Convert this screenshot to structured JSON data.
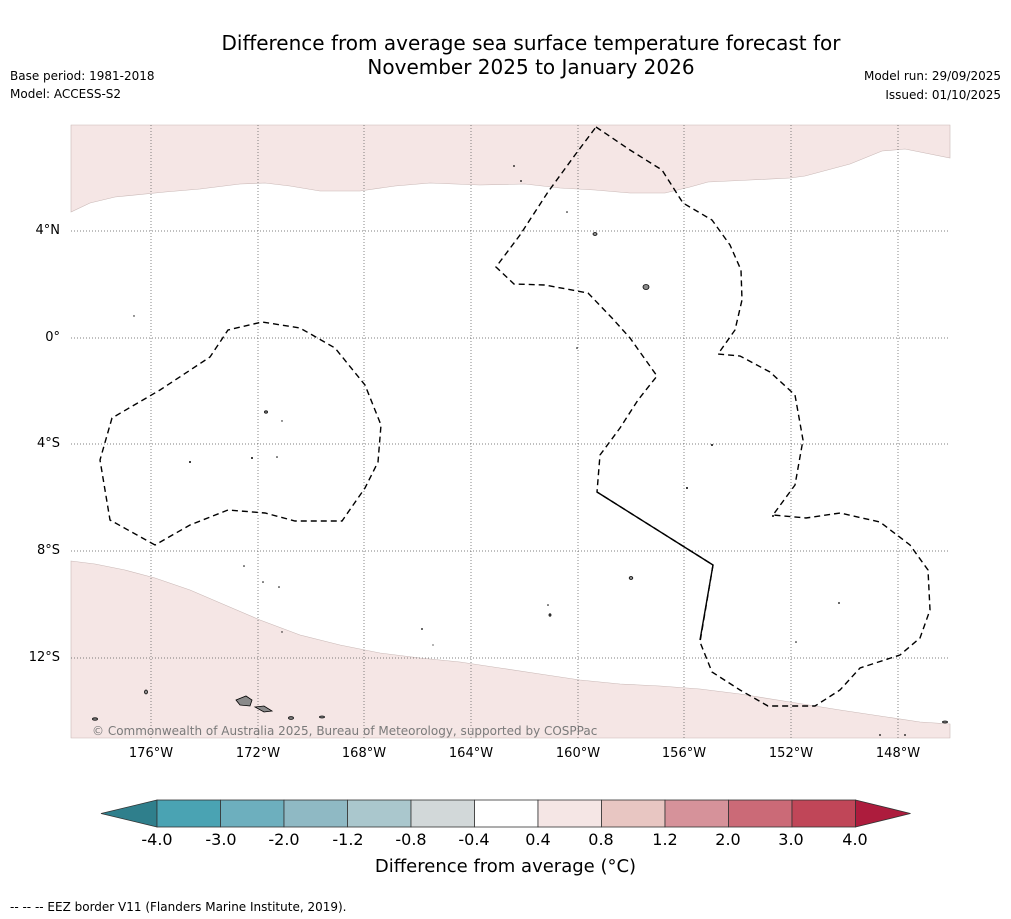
{
  "header": {
    "title_line1": "Difference from average sea surface temperature forecast for",
    "title_line2": "November 2025 to January 2026",
    "base_period": "Base period: 1981-2018",
    "model": "Model: ACCESS-S2",
    "model_run": "Model run: 29/09/2025",
    "issued": "Issued: 01/10/2025"
  },
  "map": {
    "lat_labels": [
      "4°N",
      "0°",
      "4°S",
      "8°S",
      "12°S"
    ],
    "lon_labels": [
      "176°W",
      "172°W",
      "168°W",
      "164°W",
      "160°W",
      "156°W",
      "152°W",
      "148°W"
    ],
    "copyright": "© Commonwealth of Australia 2025, Bureau of Meteorology, supported by COSPPac",
    "warm_region_colour": "#f5e6e5",
    "land_colour": "#8a8a8a"
  },
  "colorbar": {
    "title": "Difference from average (°C)",
    "ticks": [
      "-4.0",
      "-3.0",
      "-2.0",
      "-1.2",
      "-0.8",
      "-0.4",
      "0.4",
      "0.8",
      "1.2",
      "2.0",
      "3.0",
      "4.0"
    ],
    "colours": [
      "#2f7f8c",
      "#4aa3b3",
      "#6dafbe",
      "#8fb9c4",
      "#aac7cd",
      "#d2d8d9",
      "#ffffff",
      "#f5e6e5",
      "#e8c6c2",
      "#d6929a",
      "#cb6a77",
      "#c04658",
      "#ad1c3d"
    ]
  },
  "footer": {
    "eez_note": "--  --  -- EEZ border V11 (Flanders Marine Institute, 2019)."
  }
}
